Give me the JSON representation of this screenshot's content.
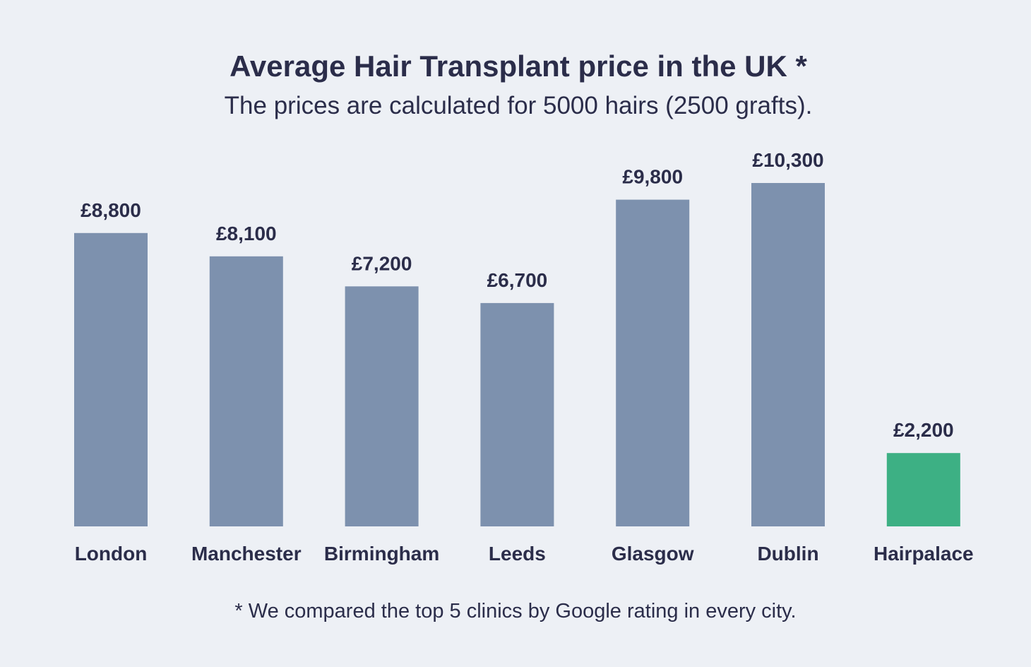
{
  "title": "Average Hair Transplant price in the UK *",
  "subtitle": "The prices are calculated for 5000 hairs (2500 grafts).",
  "footnote": "* We compared the top 5 clinics by Google rating in every city.",
  "colors": {
    "background": "#edf0f5",
    "bar": "#7d91ae",
    "highlight_bar": "#3db084",
    "text": "#2b2d4a"
  },
  "chart_data": {
    "type": "bar",
    "title": "Average Hair Transplant price in the UK *",
    "subtitle": "The prices are calculated for 5000 hairs (2500 grafts).",
    "xlabel": "",
    "ylabel": "",
    "ylim": [
      0,
      10300
    ],
    "grid": false,
    "legend": "none",
    "categories": [
      "London",
      "Manchester",
      "Birmingham",
      "Leeds",
      "Glasgow",
      "Dublin",
      "Hairpalace"
    ],
    "values": [
      8800,
      8100,
      7200,
      6700,
      9800,
      10300,
      2200
    ],
    "data_labels": [
      "£8,800",
      "£8,100",
      "£7,200",
      "£6,700",
      "£9,800",
      "£10,300",
      "£2,200"
    ],
    "highlight": [
      "Hairpalace"
    ]
  }
}
